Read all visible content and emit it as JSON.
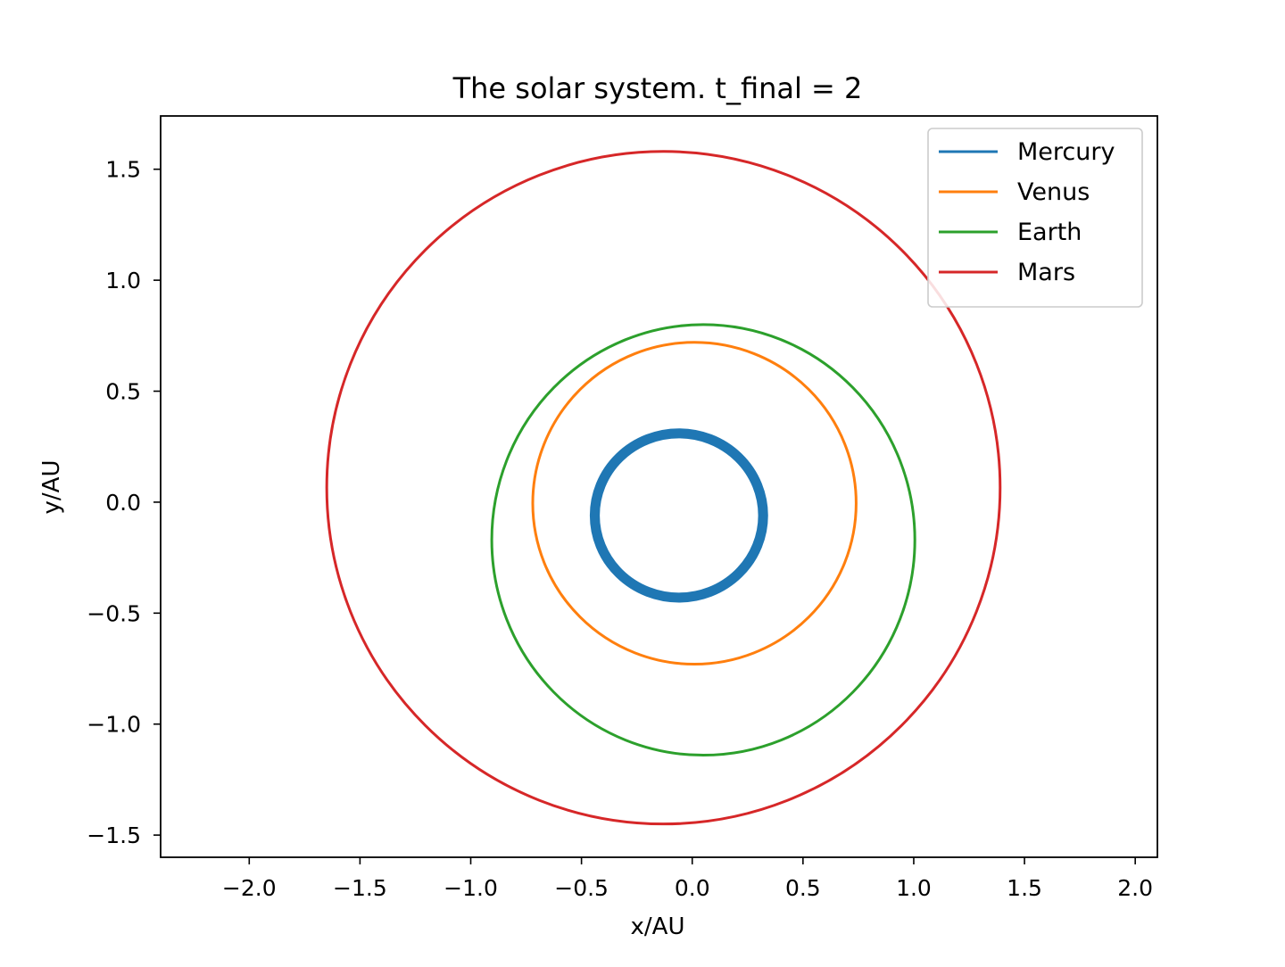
{
  "chart_data": {
    "type": "line",
    "title": "The solar system. t_final = 2",
    "xlabel": "x/AU",
    "ylabel": "y/AU",
    "xlim": [
      -2.4,
      2.1
    ],
    "ylim": [
      -1.6,
      1.74
    ],
    "xticks": [
      {
        "value": -2.0,
        "label": "−2.0"
      },
      {
        "value": -1.5,
        "label": "−1.5"
      },
      {
        "value": -1.0,
        "label": "−1.0"
      },
      {
        "value": -0.5,
        "label": "−0.5"
      },
      {
        "value": 0.0,
        "label": "0.0"
      },
      {
        "value": 0.5,
        "label": "0.5"
      },
      {
        "value": 1.0,
        "label": "1.0"
      },
      {
        "value": 1.5,
        "label": "1.5"
      },
      {
        "value": 2.0,
        "label": "2.0"
      }
    ],
    "yticks": [
      {
        "value": -1.5,
        "label": "−1.5"
      },
      {
        "value": -1.0,
        "label": "−1.0"
      },
      {
        "value": -0.5,
        "label": "−0.5"
      },
      {
        "value": 0.0,
        "label": "0.0"
      },
      {
        "value": 0.5,
        "label": "0.5"
      },
      {
        "value": 1.0,
        "label": "1.0"
      },
      {
        "value": 1.5,
        "label": "1.5"
      }
    ],
    "grid": false,
    "legend_position": "top-right",
    "series": [
      {
        "name": "Mercury",
        "color": "#1f77b4",
        "orbit_center": [
          -0.06,
          -0.06
        ],
        "orbit_radius": [
          0.38,
          0.37
        ],
        "band_width": 0.045
      },
      {
        "name": "Venus",
        "color": "#ff7f0e",
        "orbit_center": [
          0.01,
          -0.005
        ],
        "orbit_radius": [
          0.73,
          0.725
        ]
      },
      {
        "name": "Earth",
        "color": "#2ca02c",
        "orbit_center": [
          0.05,
          -0.17
        ],
        "orbit_radius": [
          0.955,
          0.97
        ]
      },
      {
        "name": "Mars",
        "color": "#d62728",
        "orbit_center": [
          -0.13,
          0.065
        ],
        "orbit_radius": [
          1.52,
          1.515
        ]
      }
    ]
  }
}
